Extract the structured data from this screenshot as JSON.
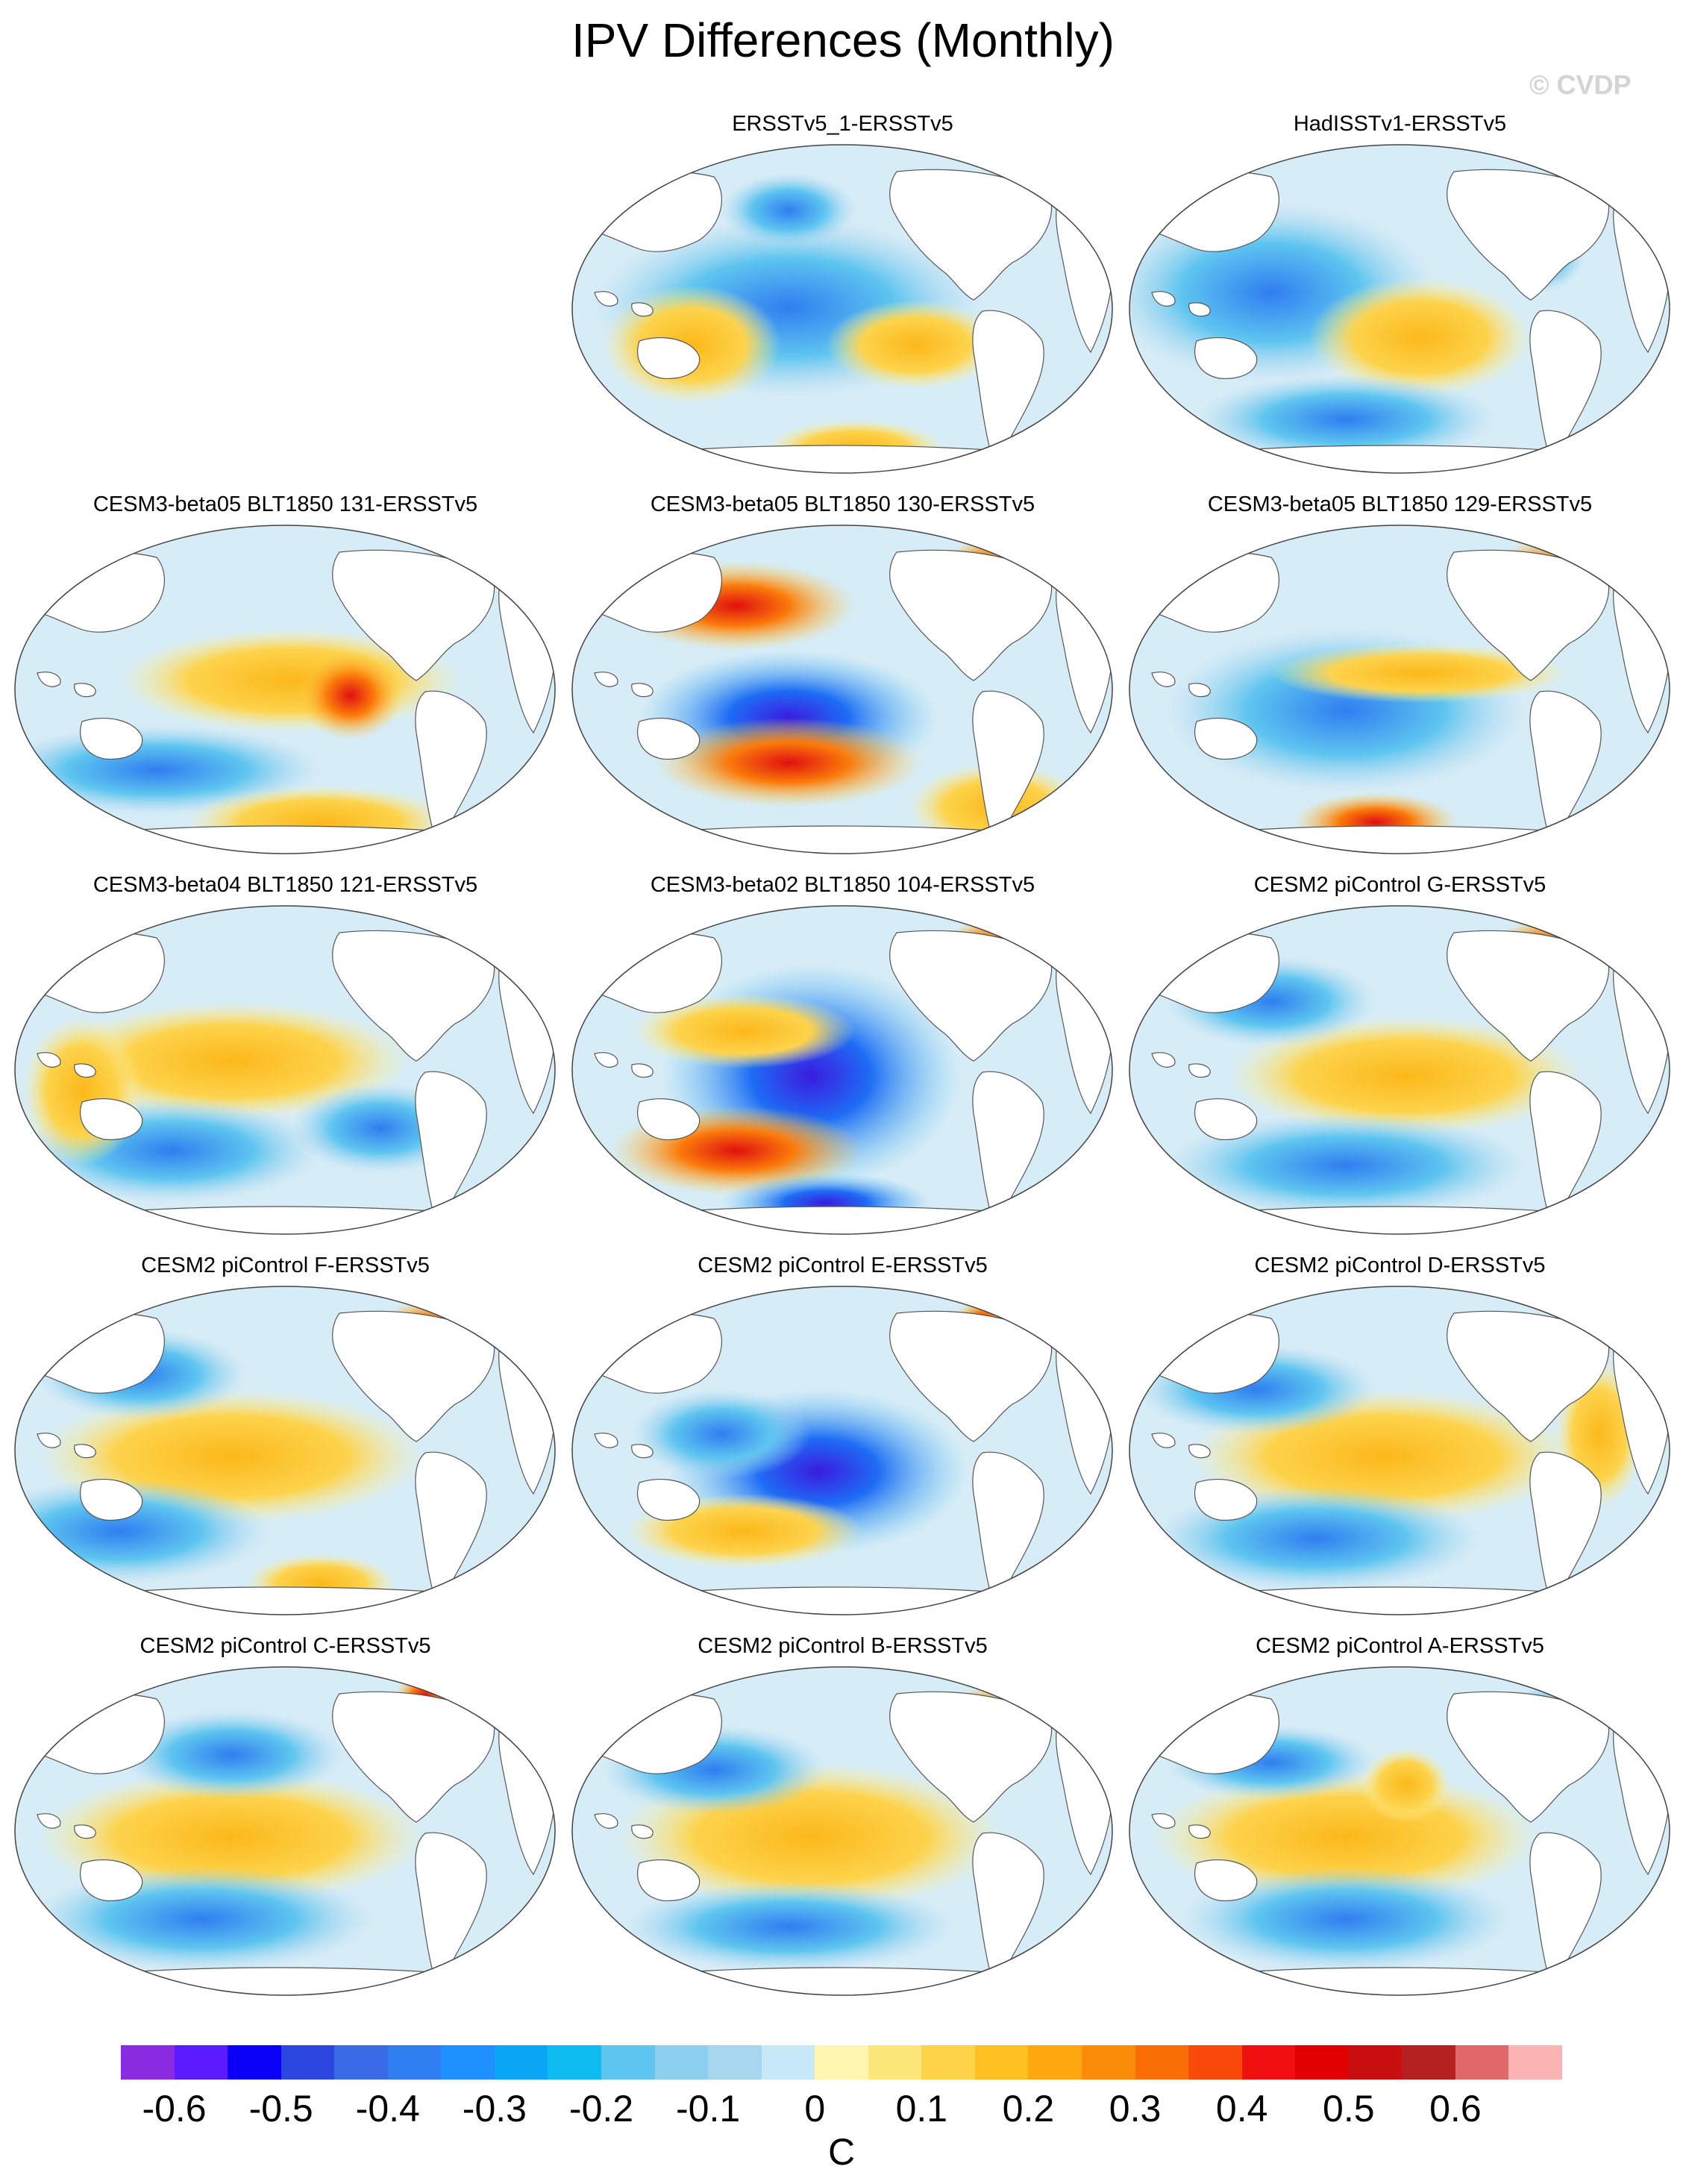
{
  "title": "IPV Differences (Monthly)",
  "watermark": "© CVDP",
  "colorbar": {
    "unit": "C",
    "labels": [
      "-0.6",
      "-0.5",
      "-0.4",
      "-0.3",
      "-0.2",
      "-0.1",
      "0",
      "0.1",
      "0.2",
      "0.3",
      "0.4",
      "0.5",
      "0.6"
    ],
    "colors": [
      "#8a2be2",
      "#5a1cff",
      "#0a00f5",
      "#2b47e0",
      "#3b6ae6",
      "#2f7ef0",
      "#1e90ff",
      "#0aa6f5",
      "#0fbcf2",
      "#5ec5f0",
      "#8ccfee",
      "#a9d6ef",
      "#c7e8f6",
      "#fdf7b2",
      "#fde77a",
      "#fed347",
      "#fdc020",
      "#fca80e",
      "#fb8c0a",
      "#fa6e08",
      "#f94a0a",
      "#f01010",
      "#e00000",
      "#c80e0e",
      "#b52020",
      "#e06868",
      "#fbb3b3"
    ]
  },
  "panels": [
    {
      "title": "ERSSTv5_1-ERSSTv5"
    },
    {
      "title": "HadISSTv1-ERSSTv5"
    },
    {
      "title": "CESM3-beta05 BLT1850 131-ERSSTv5"
    },
    {
      "title": "CESM3-beta05 BLT1850 130-ERSSTv5"
    },
    {
      "title": "CESM3-beta05 BLT1850 129-ERSSTv5"
    },
    {
      "title": "CESM3-beta04 BLT1850 121-ERSSTv5"
    },
    {
      "title": "CESM3-beta02 BLT1850 104-ERSSTv5"
    },
    {
      "title": "CESM2 piControl G-ERSSTv5"
    },
    {
      "title": "CESM2 piControl F-ERSSTv5"
    },
    {
      "title": "CESM2 piControl E-ERSSTv5"
    },
    {
      "title": "CESM2 piControl D-ERSSTv5"
    },
    {
      "title": "CESM2 piControl C-ERSSTv5"
    },
    {
      "title": "CESM2 piControl B-ERSSTv5"
    },
    {
      "title": "CESM2 piControl A-ERSSTv5"
    }
  ]
}
